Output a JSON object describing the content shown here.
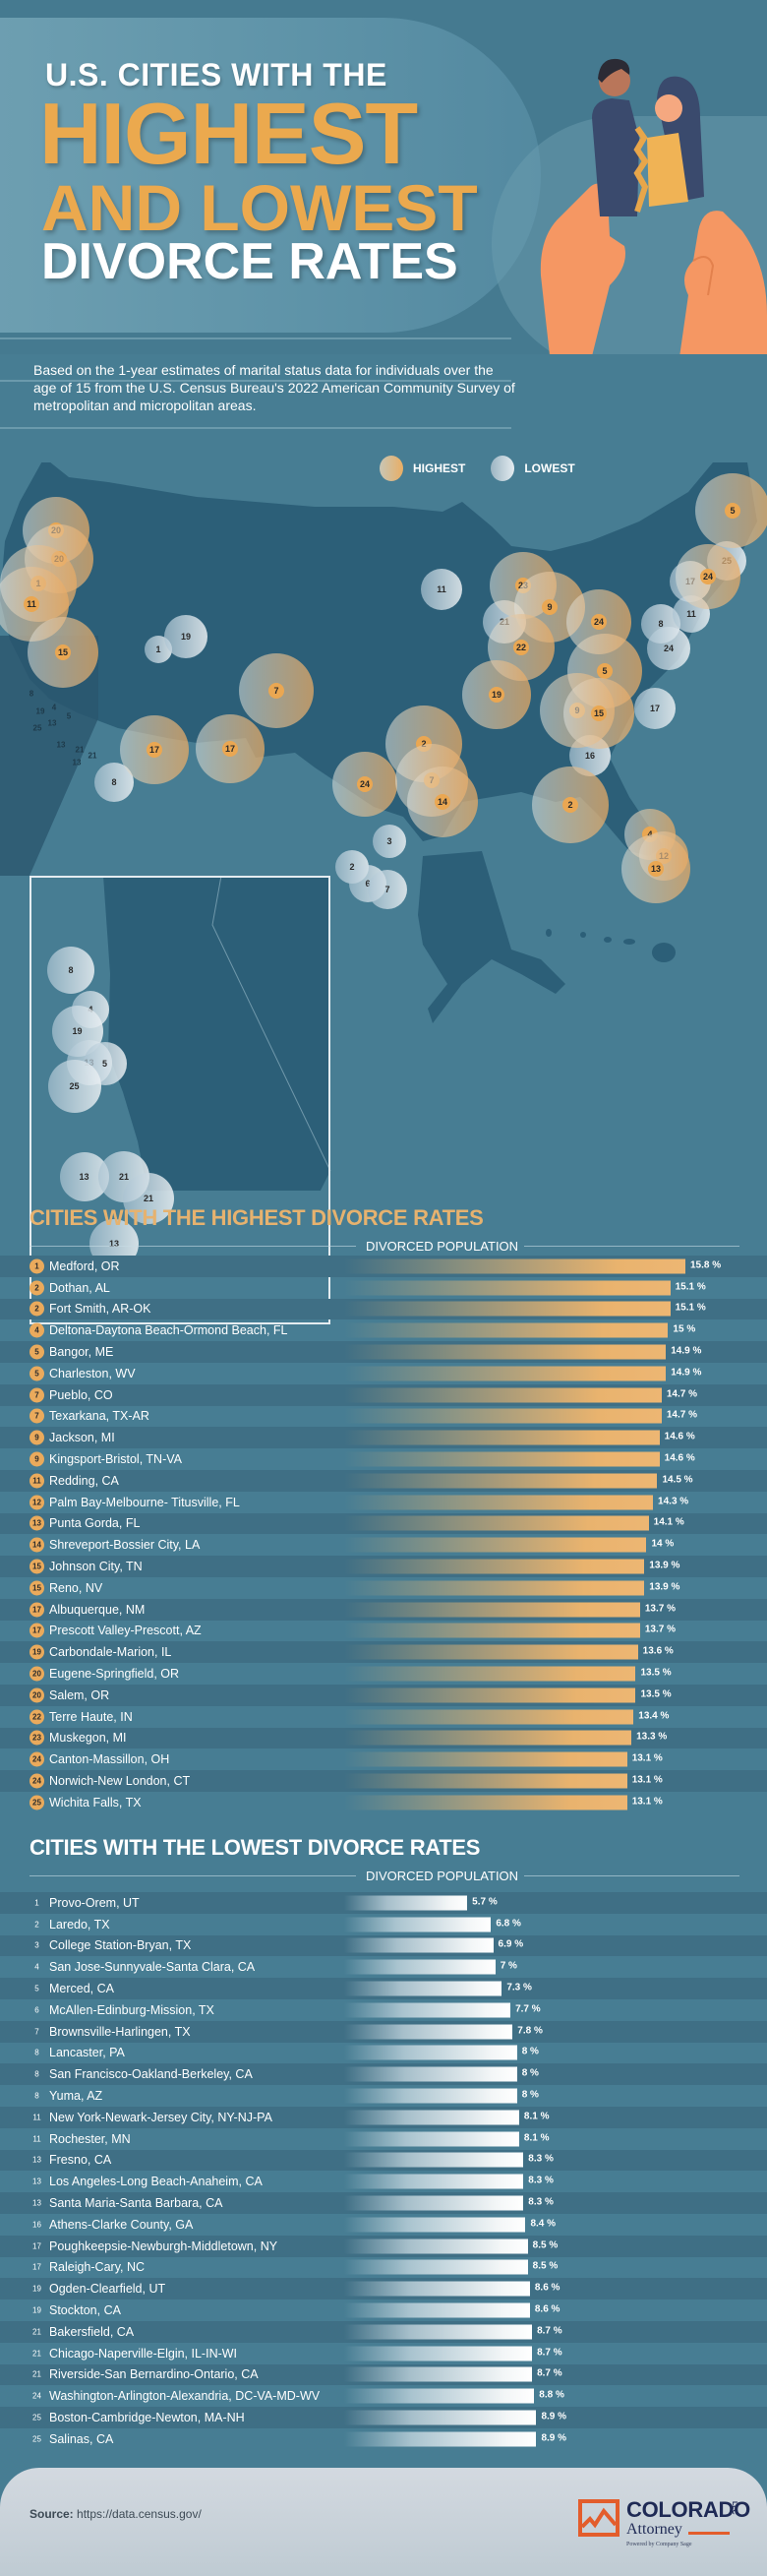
{
  "header": {
    "title_line1": "U.S. CITIES WITH THE",
    "title_line2": "HIGHEST",
    "title_line3": "AND LOWEST",
    "title_line4": "DIVORCE RATES"
  },
  "intro": "Based on the 1-year estimates of marital status data for individuals over the age of 15 from the U.S. Census Bureau's 2022 American Community Survey of metropolitan and micropolitan areas.",
  "legend": {
    "highest": "HIGHEST",
    "lowest": "LOWEST"
  },
  "colors": {
    "background": "#477d93",
    "highest_accent": "#eaa752",
    "lowest_accent": "#eef2f4",
    "stripe": "#3f6f85",
    "brand_navy": "#1f2a55",
    "brand_orange": "#e35d2c"
  },
  "map": {
    "highest_markers": [
      "20",
      "20",
      "1",
      "11",
      "15",
      "7",
      "17",
      "17",
      "24",
      "2",
      "7",
      "14",
      "23",
      "9",
      "22",
      "19",
      "24",
      "5",
      "9",
      "15",
      "2",
      "4",
      "12",
      "13",
      "5",
      "24"
    ],
    "lowest_markers": [
      "11",
      "21",
      "1",
      "19",
      "8",
      "3",
      "2",
      "6",
      "7",
      "16",
      "17",
      "8",
      "24",
      "11",
      "17",
      "25"
    ],
    "inset_markers": [
      "8",
      "4",
      "19",
      "13",
      "5",
      "25",
      "13",
      "21",
      "21",
      "13"
    ]
  },
  "highest": {
    "title": "CITIES WITH THE HIGHEST DIVORCE RATES",
    "column_header": "DIVORCED POPULATION",
    "rows": [
      {
        "rank": "1",
        "city": "Medford, OR",
        "value": 15.8,
        "label": "15.8 %"
      },
      {
        "rank": "2",
        "city": "Dothan, AL",
        "value": 15.1,
        "label": "15.1 %"
      },
      {
        "rank": "2",
        "city": "Fort Smith, AR-OK",
        "value": 15.1,
        "label": "15.1 %"
      },
      {
        "rank": "4",
        "city": "Deltona-Daytona Beach-Ormond Beach, FL",
        "value": 15.0,
        "label": "15 %"
      },
      {
        "rank": "5",
        "city": "Bangor, ME",
        "value": 14.9,
        "label": "14.9 %"
      },
      {
        "rank": "5",
        "city": "Charleston, WV",
        "value": 14.9,
        "label": "14.9 %"
      },
      {
        "rank": "7",
        "city": "Pueblo, CO",
        "value": 14.7,
        "label": "14.7 %"
      },
      {
        "rank": "7",
        "city": "Texarkana, TX-AR",
        "value": 14.7,
        "label": "14.7 %"
      },
      {
        "rank": "9",
        "city": "Jackson, MI",
        "value": 14.6,
        "label": "14.6 %"
      },
      {
        "rank": "9",
        "city": "Kingsport-Bristol, TN-VA",
        "value": 14.6,
        "label": "14.6 %"
      },
      {
        "rank": "11",
        "city": "Redding, CA",
        "value": 14.5,
        "label": "14.5 %"
      },
      {
        "rank": "12",
        "city": "Palm Bay-Melbourne- Titusville, FL",
        "value": 14.3,
        "label": "14.3 %"
      },
      {
        "rank": "13",
        "city": "Punta Gorda, FL",
        "value": 14.1,
        "label": "14.1 %"
      },
      {
        "rank": "14",
        "city": "Shreveport-Bossier City, LA",
        "value": 14.0,
        "label": "14 %"
      },
      {
        "rank": "15",
        "city": "Johnson City, TN",
        "value": 13.9,
        "label": "13.9 %"
      },
      {
        "rank": "15",
        "city": "Reno, NV",
        "value": 13.9,
        "label": "13.9 %"
      },
      {
        "rank": "17",
        "city": "Albuquerque, NM",
        "value": 13.7,
        "label": "13.7 %"
      },
      {
        "rank": "17",
        "city": "Prescott Valley-Prescott, AZ",
        "value": 13.7,
        "label": "13.7 %"
      },
      {
        "rank": "19",
        "city": "Carbondale-Marion, IL",
        "value": 13.6,
        "label": "13.6 %"
      },
      {
        "rank": "20",
        "city": "Eugene-Springfield, OR",
        "value": 13.5,
        "label": "13.5 %"
      },
      {
        "rank": "20",
        "city": "Salem, OR",
        "value": 13.5,
        "label": "13.5 %"
      },
      {
        "rank": "22",
        "city": "Terre Haute, IN",
        "value": 13.4,
        "label": "13.4 %"
      },
      {
        "rank": "23",
        "city": "Muskegon, MI",
        "value": 13.3,
        "label": "13.3 %"
      },
      {
        "rank": "24",
        "city": "Canton-Massillon, OH",
        "value": 13.1,
        "label": "13.1 %"
      },
      {
        "rank": "24",
        "city": "Norwich-New London, CT",
        "value": 13.1,
        "label": "13.1 %"
      },
      {
        "rank": "25",
        "city": "Wichita Falls, TX",
        "value": 13.1,
        "label": "13.1 %"
      }
    ]
  },
  "lowest": {
    "title": "CITIES WITH THE LOWEST DIVORCE RATES",
    "column_header": "DIVORCED POPULATION",
    "rows": [
      {
        "rank": "1",
        "city": "Provo-Orem, UT",
        "value": 5.7,
        "label": "5.7 %"
      },
      {
        "rank": "2",
        "city": "Laredo, TX",
        "value": 6.8,
        "label": "6.8 %"
      },
      {
        "rank": "3",
        "city": "College Station-Bryan, TX",
        "value": 6.9,
        "label": "6.9 %"
      },
      {
        "rank": "4",
        "city": "San Jose-Sunnyvale-Santa Clara, CA",
        "value": 7.0,
        "label": "7 %"
      },
      {
        "rank": "5",
        "city": "Merced, CA",
        "value": 7.3,
        "label": "7.3 %"
      },
      {
        "rank": "6",
        "city": "McAllen-Edinburg-Mission, TX",
        "value": 7.7,
        "label": "7.7 %"
      },
      {
        "rank": "7",
        "city": "Brownsville-Harlingen, TX",
        "value": 7.8,
        "label": "7.8 %"
      },
      {
        "rank": "8",
        "city": "Lancaster, PA",
        "value": 8.0,
        "label": "8 %"
      },
      {
        "rank": "8",
        "city": "San Francisco-Oakland-Berkeley, CA",
        "value": 8.0,
        "label": "8 %"
      },
      {
        "rank": "8",
        "city": "Yuma, AZ",
        "value": 8.0,
        "label": "8 %"
      },
      {
        "rank": "11",
        "city": "New York-Newark-Jersey City, NY-NJ-PA",
        "value": 8.1,
        "label": "8.1 %"
      },
      {
        "rank": "11",
        "city": "Rochester, MN",
        "value": 8.1,
        "label": "8.1 %"
      },
      {
        "rank": "13",
        "city": "Fresno, CA",
        "value": 8.3,
        "label": "8.3 %"
      },
      {
        "rank": "13",
        "city": "Los Angeles-Long Beach-Anaheim, CA",
        "value": 8.3,
        "label": "8.3 %"
      },
      {
        "rank": "13",
        "city": "Santa Maria-Santa Barbara, CA",
        "value": 8.3,
        "label": "8.3 %"
      },
      {
        "rank": "16",
        "city": "Athens-Clarke County, GA",
        "value": 8.4,
        "label": "8.4 %"
      },
      {
        "rank": "17",
        "city": "Poughkeepsie-Newburgh-Middletown, NY",
        "value": 8.5,
        "label": "8.5 %"
      },
      {
        "rank": "17",
        "city": "Raleigh-Cary, NC",
        "value": 8.5,
        "label": "8.5 %"
      },
      {
        "rank": "19",
        "city": "Ogden-Clearfield, UT",
        "value": 8.6,
        "label": "8.6 %"
      },
      {
        "rank": "19",
        "city": "Stockton, CA",
        "value": 8.6,
        "label": "8.6 %"
      },
      {
        "rank": "21",
        "city": "Bakersfield, CA",
        "value": 8.7,
        "label": "8.7 %"
      },
      {
        "rank": "21",
        "city": "Chicago-Naperville-Elgin, IL-IN-WI",
        "value": 8.7,
        "label": "8.7 %"
      },
      {
        "rank": "21",
        "city": "Riverside-San Bernardino-Ontario, CA",
        "value": 8.7,
        "label": "8.7 %"
      },
      {
        "rank": "24",
        "city": "Washington-Arlington-Alexandria, DC-VA-MD-WV",
        "value": 8.8,
        "label": "8.8 %"
      },
      {
        "rank": "25",
        "city": "Boston-Cambridge-Newton, MA-NH",
        "value": 8.9,
        "label": "8.9 %"
      },
      {
        "rank": "25",
        "city": "Salinas, CA",
        "value": 8.9,
        "label": "8.9 %"
      }
    ]
  },
  "footer": {
    "source_label": "Source:",
    "source_url": "https://data.census.gov/",
    "logo_name": "COLORADO",
    "logo_llc": "LLC",
    "logo_sub": "Attorney",
    "logo_powered": "Powered by Company Sage"
  },
  "chart_data": [
    {
      "type": "bar",
      "orientation": "horizontal",
      "title": "CITIES WITH THE HIGHEST DIVORCE RATES",
      "xlabel": "DIVORCED POPULATION",
      "ylabel": "",
      "unit": "%",
      "categories": [
        "Medford, OR",
        "Dothan, AL",
        "Fort Smith, AR-OK",
        "Deltona-Daytona Beach-Ormond Beach, FL",
        "Bangor, ME",
        "Charleston, WV",
        "Pueblo, CO",
        "Texarkana, TX-AR",
        "Jackson, MI",
        "Kingsport-Bristol, TN-VA",
        "Redding, CA",
        "Palm Bay-Melbourne- Titusville, FL",
        "Punta Gorda, FL",
        "Shreveport-Bossier City, LA",
        "Johnson City, TN",
        "Reno, NV",
        "Albuquerque, NM",
        "Prescott Valley-Prescott, AZ",
        "Carbondale-Marion, IL",
        "Eugene-Springfield, OR",
        "Salem, OR",
        "Terre Haute, IN",
        "Muskegon, MI",
        "Canton-Massillon, OH",
        "Norwich-New London, CT",
        "Wichita Falls, TX"
      ],
      "values": [
        15.8,
        15.1,
        15.1,
        15.0,
        14.9,
        14.9,
        14.7,
        14.7,
        14.6,
        14.6,
        14.5,
        14.3,
        14.1,
        14.0,
        13.9,
        13.9,
        13.7,
        13.7,
        13.6,
        13.5,
        13.5,
        13.4,
        13.3,
        13.1,
        13.1,
        13.1
      ],
      "grid": false
    },
    {
      "type": "bar",
      "orientation": "horizontal",
      "title": "CITIES WITH THE LOWEST DIVORCE RATES",
      "xlabel": "DIVORCED POPULATION",
      "ylabel": "",
      "unit": "%",
      "categories": [
        "Provo-Orem, UT",
        "Laredo, TX",
        "College Station-Bryan, TX",
        "San Jose-Sunnyvale-Santa Clara, CA",
        "Merced, CA",
        "McAllen-Edinburg-Mission, TX",
        "Brownsville-Harlingen, TX",
        "Lancaster, PA",
        "San Francisco-Oakland-Berkeley, CA",
        "Yuma, AZ",
        "New York-Newark-Jersey City, NY-NJ-PA",
        "Rochester, MN",
        "Fresno, CA",
        "Los Angeles-Long Beach-Anaheim, CA",
        "Santa Maria-Santa Barbara, CA",
        "Athens-Clarke County, GA",
        "Poughkeepsie-Newburgh-Middletown, NY",
        "Raleigh-Cary, NC",
        "Ogden-Clearfield, UT",
        "Stockton, CA",
        "Bakersfield, CA",
        "Chicago-Naperville-Elgin, IL-IN-WI",
        "Riverside-San Bernardino-Ontario, CA",
        "Washington-Arlington-Alexandria, DC-VA-MD-WV",
        "Boston-Cambridge-Newton, MA-NH",
        "Salinas, CA"
      ],
      "values": [
        5.7,
        6.8,
        6.9,
        7.0,
        7.3,
        7.7,
        7.8,
        8.0,
        8.0,
        8.0,
        8.1,
        8.1,
        8.3,
        8.3,
        8.3,
        8.4,
        8.5,
        8.5,
        8.6,
        8.6,
        8.7,
        8.7,
        8.7,
        8.8,
        8.9,
        8.9
      ],
      "grid": false
    }
  ]
}
